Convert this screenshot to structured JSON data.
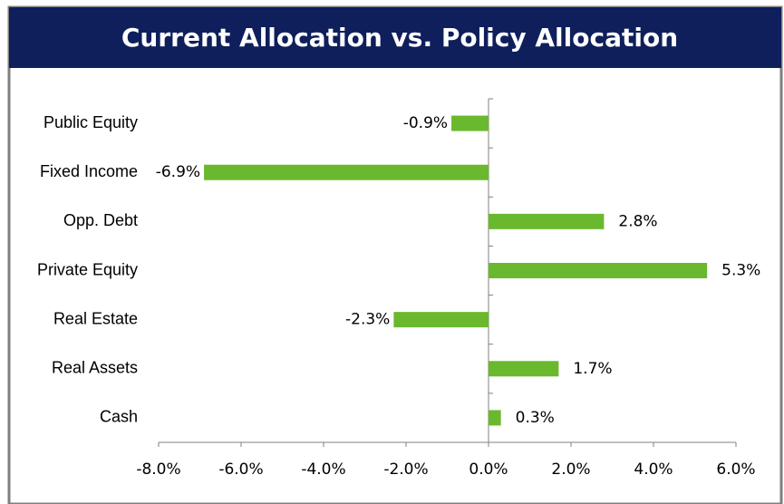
{
  "chart_data": {
    "type": "bar",
    "orientation": "horizontal",
    "title": "Current Allocation vs. Policy Allocation",
    "categories": [
      "Public Equity",
      "Fixed Income",
      "Opp. Debt",
      "Private Equity",
      "Real Estate",
      "Real Assets",
      "Cash"
    ],
    "values": [
      -0.9,
      -6.9,
      2.8,
      5.3,
      -2.3,
      1.7,
      0.3
    ],
    "value_labels": [
      "-0.9%",
      "-6.9%",
      "2.8%",
      "5.3%",
      "-2.3%",
      "1.7%",
      "0.3%"
    ],
    "color": "#6ab82d",
    "xlim": [
      -8,
      6
    ],
    "xticks": [
      {
        "value": -8,
        "label": "-8.0%"
      },
      {
        "value": -6,
        "label": "-6.0%"
      },
      {
        "value": -4,
        "label": "-4.0%"
      },
      {
        "value": -2,
        "label": "-2.0%"
      },
      {
        "value": 0,
        "label": "0.0%"
      },
      {
        "value": 2,
        "label": "2.0%"
      },
      {
        "value": 4,
        "label": "4.0%"
      },
      {
        "value": 6,
        "label": "6.0%"
      }
    ],
    "grid": false
  }
}
